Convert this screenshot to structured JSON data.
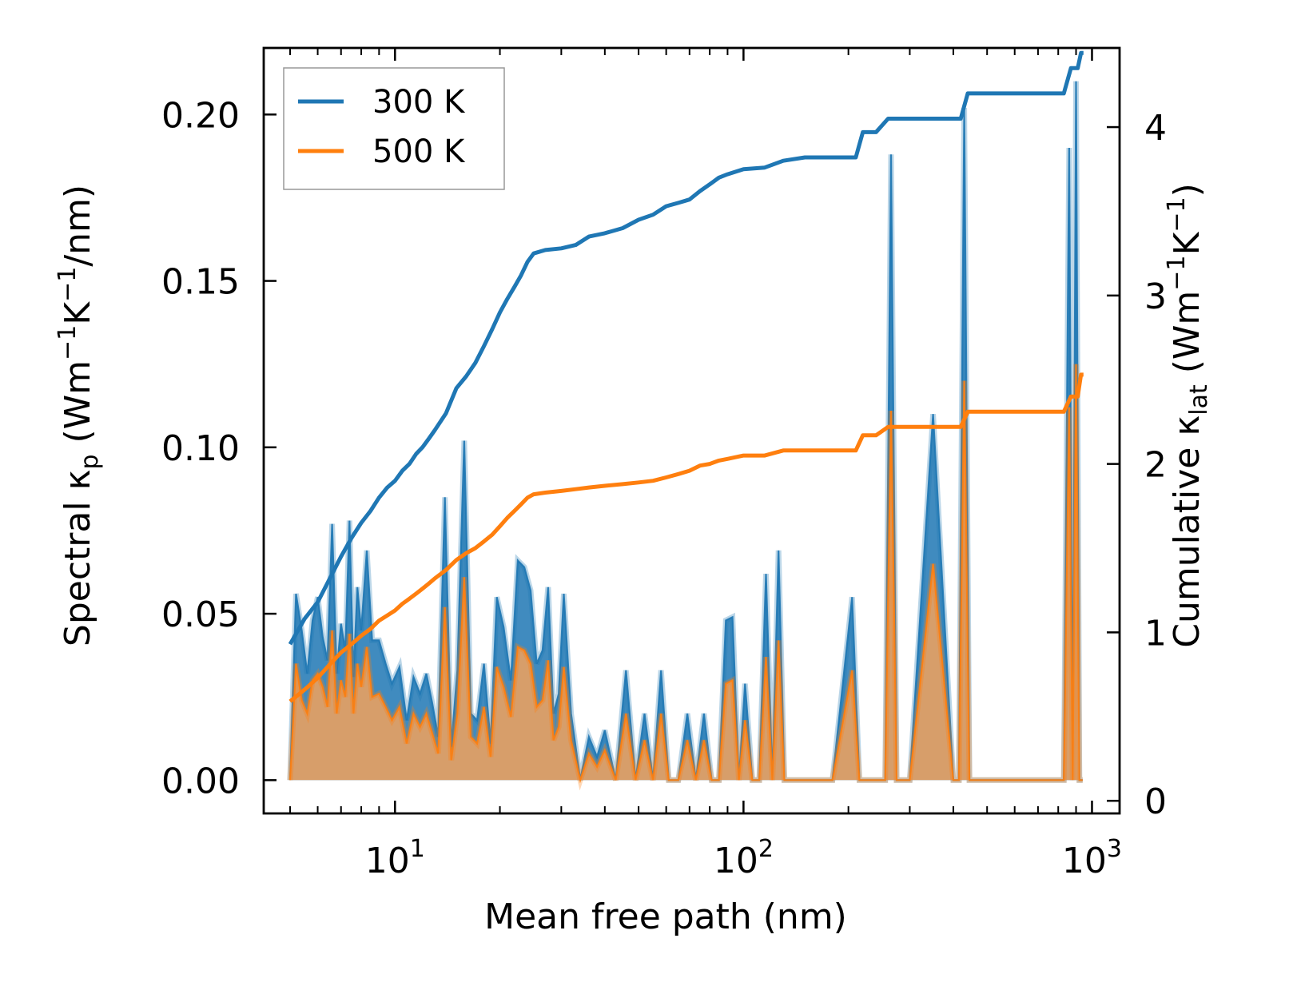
{
  "chart_data": {
    "type": "line",
    "xlabel": "Mean free path (nm)",
    "xscale": "log",
    "xlim": [
      4.2,
      1200
    ],
    "xticks": [
      {
        "value": 10,
        "base": "10",
        "exp": "1"
      },
      {
        "value": 100,
        "base": "10",
        "exp": "2"
      },
      {
        "value": 1000,
        "base": "10",
        "exp": "3"
      }
    ],
    "ylabel_left": {
      "text": "Spectral κ",
      "sub": "p",
      "unit_open": " (Wm",
      "sup1": "−1",
      "mid": "K",
      "sup2": "−1",
      "unit_close": "/nm)"
    },
    "ylim_left": [
      -0.01,
      0.22
    ],
    "yticks_left": [
      {
        "value": 0.0,
        "label": "0.00"
      },
      {
        "value": 0.05,
        "label": "0.05"
      },
      {
        "value": 0.1,
        "label": "0.10"
      },
      {
        "value": 0.15,
        "label": "0.15"
      },
      {
        "value": 0.2,
        "label": "0.20"
      }
    ],
    "ylabel_right": {
      "text": "Cumulative κ",
      "sub": "lat",
      "unit_open": " (Wm",
      "sup1": "−1",
      "mid": "K",
      "sup2": "−1",
      "unit_close": ")"
    },
    "ylim_right": [
      -0.075,
      4.47
    ],
    "yticks_right": [
      {
        "value": 0,
        "label": "0"
      },
      {
        "value": 1,
        "label": "1"
      },
      {
        "value": 2,
        "label": "2"
      },
      {
        "value": 3,
        "label": "3"
      },
      {
        "value": 4,
        "label": "4"
      }
    ],
    "legend": {
      "position": "top-left",
      "entries": [
        "300 K",
        "500 K"
      ]
    },
    "colors": {
      "series_300K": "#1f77b4",
      "series_500K": "#ff7f0e",
      "fill_300K": "#1f77b4",
      "fill_500K": "#e8a060"
    },
    "spectral_series": [
      {
        "name": "300 K",
        "x": [
          5,
          5.2,
          5.4,
          5.6,
          5.8,
          6.0,
          6.2,
          6.4,
          6.6,
          6.8,
          7.0,
          7.2,
          7.4,
          7.6,
          7.8,
          8.0,
          8.3,
          8.6,
          9.0,
          9.4,
          9.8,
          10.3,
          10.8,
          11.3,
          11.8,
          12.3,
          12.8,
          13.3,
          13.9,
          14.5,
          15.1,
          15.8,
          16.5,
          17.2,
          18.0,
          18.8,
          19.6,
          20.5,
          21.5,
          22.5,
          23.5,
          24.5,
          25.5,
          26.5,
          27.5,
          28.5,
          29.5,
          30.5,
          32,
          34,
          36,
          38,
          40,
          43,
          46,
          49,
          52,
          55,
          58,
          61,
          65,
          69,
          73,
          77,
          81,
          85,
          89,
          93,
          97,
          101,
          106,
          111,
          116,
          121,
          126,
          131,
          136,
          150,
          180,
          205,
          215,
          225,
          240,
          255,
          265,
          275,
          300,
          350,
          400,
          415,
          430,
          445,
          470,
          550,
          650,
          750,
          830,
          860,
          880,
          900,
          920,
          940
        ],
        "y": [
          0.0,
          0.056,
          0.045,
          0.032,
          0.048,
          0.055,
          0.043,
          0.036,
          0.077,
          0.032,
          0.047,
          0.039,
          0.078,
          0.031,
          0.058,
          0.045,
          0.069,
          0.042,
          0.042,
          0.035,
          0.029,
          0.034,
          0.018,
          0.031,
          0.026,
          0.032,
          0.023,
          0.013,
          0.085,
          0.01,
          0.033,
          0.102,
          0.02,
          0.018,
          0.035,
          0.011,
          0.055,
          0.046,
          0.03,
          0.066,
          0.064,
          0.057,
          0.035,
          0.039,
          0.058,
          0.02,
          0.026,
          0.056,
          0.02,
          0.0,
          0.013,
          0.007,
          0.015,
          0.0,
          0.033,
          0.0,
          0.02,
          0.0,
          0.033,
          0.0,
          0.0,
          0.02,
          0.0,
          0.02,
          0.0,
          0.0,
          0.048,
          0.049,
          0.0,
          0.029,
          0.0,
          0.0,
          0.062,
          0.0,
          0.069,
          0.0,
          0.0,
          0.0,
          0.0,
          0.055,
          0.0,
          0.0,
          0.0,
          0.0,
          0.188,
          0.0,
          0.0,
          0.11,
          0.0,
          0.0,
          0.202,
          0.0,
          0.0,
          0.0,
          0.0,
          0.0,
          0.0,
          0.19,
          0.0,
          0.21,
          0.0,
          0.0
        ]
      },
      {
        "name": "500 K",
        "x": [
          5,
          5.2,
          5.4,
          5.6,
          5.8,
          6.0,
          6.2,
          6.4,
          6.6,
          6.8,
          7.0,
          7.2,
          7.4,
          7.6,
          7.8,
          8.0,
          8.3,
          8.6,
          9.0,
          9.4,
          9.8,
          10.3,
          10.8,
          11.3,
          11.8,
          12.3,
          12.8,
          13.3,
          13.9,
          14.5,
          15.1,
          15.8,
          16.5,
          17.2,
          18.0,
          18.8,
          19.6,
          20.5,
          21.5,
          22.5,
          23.5,
          24.5,
          25.5,
          26.5,
          27.5,
          28.5,
          29.5,
          30.5,
          32,
          34,
          36,
          38,
          40,
          43,
          46,
          49,
          52,
          55,
          58,
          61,
          65,
          69,
          73,
          77,
          81,
          85,
          89,
          93,
          97,
          101,
          106,
          111,
          116,
          121,
          126,
          131,
          136,
          150,
          180,
          205,
          215,
          225,
          240,
          255,
          265,
          275,
          300,
          350,
          400,
          415,
          430,
          445,
          470,
          550,
          650,
          750,
          830,
          860,
          880,
          900,
          920,
          940
        ],
        "y": [
          0.0,
          0.035,
          0.024,
          0.02,
          0.03,
          0.032,
          0.028,
          0.022,
          0.045,
          0.02,
          0.03,
          0.025,
          0.044,
          0.02,
          0.035,
          0.028,
          0.04,
          0.025,
          0.026,
          0.022,
          0.018,
          0.022,
          0.011,
          0.02,
          0.016,
          0.02,
          0.014,
          0.008,
          0.052,
          0.006,
          0.02,
          0.061,
          0.013,
          0.011,
          0.022,
          0.007,
          0.034,
          0.028,
          0.019,
          0.04,
          0.039,
          0.035,
          0.022,
          0.024,
          0.036,
          0.012,
          0.016,
          0.034,
          0.012,
          0.0,
          0.008,
          0.004,
          0.009,
          0.0,
          0.02,
          0.0,
          0.012,
          0.0,
          0.02,
          0.0,
          0.0,
          0.012,
          0.0,
          0.012,
          0.0,
          0.0,
          0.029,
          0.03,
          0.0,
          0.018,
          0.0,
          0.0,
          0.037,
          0.0,
          0.042,
          0.0,
          0.0,
          0.0,
          0.0,
          0.033,
          0.0,
          0.0,
          0.0,
          0.0,
          0.111,
          0.0,
          0.0,
          0.065,
          0.0,
          0.0,
          0.12,
          0.0,
          0.0,
          0.0,
          0.0,
          0.0,
          0.0,
          0.112,
          0.0,
          0.125,
          0.0,
          0.0
        ]
      }
    ],
    "cumulative_series": [
      {
        "name": "300 K",
        "x": [
          5,
          5.5,
          6.0,
          6.5,
          7.0,
          7.5,
          8.0,
          8.5,
          9.0,
          9.5,
          10.0,
          10.5,
          11.0,
          11.5,
          12.0,
          12.5,
          13.0,
          14.0,
          15.0,
          16.0,
          17.0,
          18.0,
          19.0,
          20.0,
          21.0,
          22.0,
          23.0,
          24.0,
          25.0,
          27.0,
          30.0,
          33.0,
          36.0,
          40.0,
          45.0,
          50.0,
          55.0,
          60.0,
          65.0,
          70.0,
          75.0,
          80.0,
          85.0,
          90.0,
          100.0,
          115.0,
          130.0,
          150.0,
          180.0,
          210.0,
          220.0,
          240.0,
          260.0,
          300.0,
          350.0,
          420.0,
          440.0,
          500.0,
          600.0,
          700.0,
          830.0,
          870.0,
          910.0,
          930.0,
          945.0
        ],
        "y": [
          0.93,
          1.08,
          1.18,
          1.32,
          1.45,
          1.56,
          1.65,
          1.72,
          1.8,
          1.86,
          1.9,
          1.96,
          2.0,
          2.06,
          2.1,
          2.15,
          2.2,
          2.3,
          2.45,
          2.52,
          2.6,
          2.7,
          2.8,
          2.9,
          2.98,
          3.05,
          3.12,
          3.2,
          3.25,
          3.27,
          3.28,
          3.3,
          3.35,
          3.37,
          3.4,
          3.45,
          3.48,
          3.53,
          3.55,
          3.57,
          3.62,
          3.66,
          3.7,
          3.72,
          3.75,
          3.76,
          3.8,
          3.82,
          3.82,
          3.82,
          3.97,
          3.97,
          4.05,
          4.05,
          4.05,
          4.05,
          4.2,
          4.2,
          4.2,
          4.2,
          4.2,
          4.35,
          4.35,
          4.44,
          4.44
        ]
      },
      {
        "name": "500 K",
        "x": [
          5,
          5.5,
          6.0,
          6.5,
          7.0,
          7.5,
          8.0,
          8.5,
          9.0,
          9.5,
          10.0,
          10.5,
          11.0,
          11.5,
          12.0,
          12.5,
          13.0,
          14.0,
          15.0,
          16.0,
          17.0,
          18.0,
          19.0,
          20.0,
          21.0,
          22.0,
          23.0,
          24.0,
          25.0,
          27.0,
          30.0,
          33.0,
          36.0,
          40.0,
          45.0,
          50.0,
          55.0,
          60.0,
          65.0,
          70.0,
          75.0,
          80.0,
          85.0,
          90.0,
          100.0,
          115.0,
          130.0,
          150.0,
          180.0,
          210.0,
          220.0,
          240.0,
          260.0,
          300.0,
          350.0,
          420.0,
          440.0,
          500.0,
          600.0,
          700.0,
          830.0,
          870.0,
          910.0,
          930.0,
          945.0
        ],
        "y": [
          0.59,
          0.66,
          0.73,
          0.81,
          0.88,
          0.93,
          0.98,
          1.02,
          1.07,
          1.1,
          1.13,
          1.17,
          1.2,
          1.23,
          1.26,
          1.29,
          1.32,
          1.37,
          1.43,
          1.47,
          1.5,
          1.54,
          1.58,
          1.63,
          1.68,
          1.72,
          1.76,
          1.8,
          1.82,
          1.83,
          1.84,
          1.85,
          1.86,
          1.87,
          1.88,
          1.89,
          1.9,
          1.92,
          1.94,
          1.96,
          1.99,
          2.0,
          2.02,
          2.03,
          2.05,
          2.05,
          2.08,
          2.08,
          2.08,
          2.08,
          2.17,
          2.17,
          2.22,
          2.22,
          2.22,
          2.22,
          2.31,
          2.31,
          2.31,
          2.31,
          2.31,
          2.4,
          2.4,
          2.53,
          2.53
        ]
      }
    ]
  }
}
